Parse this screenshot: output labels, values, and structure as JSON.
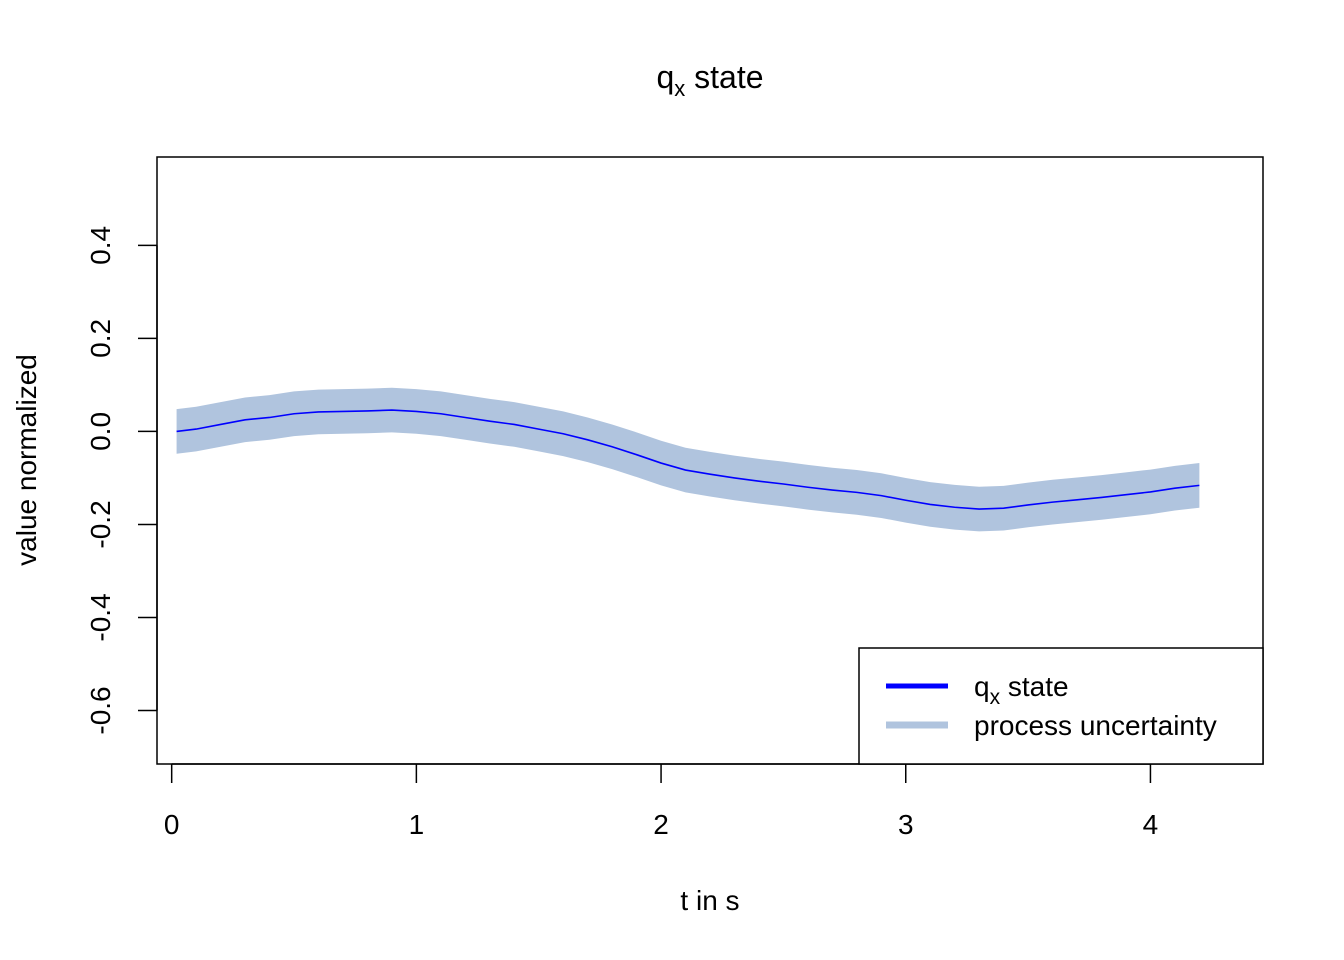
{
  "chart_data": {
    "type": "line",
    "title": {
      "main": "q",
      "sub": "x",
      "rest": " state"
    },
    "xlabel": "t in s",
    "ylabel": "value normalized",
    "xlim": [
      -0.06,
      4.46
    ],
    "ylim": [
      -0.715,
      0.59
    ],
    "x_ticks": [
      0,
      1,
      2,
      3,
      4
    ],
    "y_ticks": [
      -0.6,
      -0.4,
      -0.2,
      0.0,
      0.2,
      0.4
    ],
    "x_tick_labels": [
      "0",
      "1",
      "2",
      "3",
      "4"
    ],
    "y_tick_labels": [
      "-0.6",
      "-0.4",
      "-0.2",
      "0.0",
      "0.2",
      "0.4"
    ],
    "grid": false,
    "legend_position": "bottom-right",
    "colors": {
      "line": "#0000ff",
      "band": "#b0c4de"
    },
    "series": [
      {
        "name": {
          "main": "q",
          "sub": "x",
          "rest": " state"
        },
        "x": [
          0.02,
          0.1,
          0.2,
          0.3,
          0.4,
          0.5,
          0.6,
          0.7,
          0.8,
          0.9,
          1.0,
          1.1,
          1.2,
          1.3,
          1.4,
          1.5,
          1.6,
          1.7,
          1.8,
          1.9,
          2.0,
          2.1,
          2.2,
          2.3,
          2.4,
          2.5,
          2.6,
          2.7,
          2.8,
          2.9,
          3.0,
          3.1,
          3.2,
          3.3,
          3.4,
          3.5,
          3.6,
          3.7,
          3.8,
          3.9,
          4.0,
          4.1,
          4.2
        ],
        "y": [
          0.0,
          0.005,
          0.015,
          0.025,
          0.03,
          0.038,
          0.042,
          0.043,
          0.044,
          0.046,
          0.043,
          0.038,
          0.03,
          0.022,
          0.015,
          0.005,
          -0.005,
          -0.018,
          -0.033,
          -0.05,
          -0.068,
          -0.083,
          -0.092,
          -0.1,
          -0.107,
          -0.113,
          -0.12,
          -0.126,
          -0.131,
          -0.138,
          -0.148,
          -0.157,
          -0.163,
          -0.167,
          -0.165,
          -0.158,
          -0.152,
          -0.147,
          -0.142,
          -0.136,
          -0.13,
          -0.122,
          -0.116
        ]
      },
      {
        "name": "process uncertainty",
        "type": "band",
        "x": [
          0.02,
          0.1,
          0.2,
          0.3,
          0.4,
          0.5,
          0.6,
          0.7,
          0.8,
          0.9,
          1.0,
          1.1,
          1.2,
          1.3,
          1.4,
          1.5,
          1.6,
          1.7,
          1.8,
          1.9,
          2.0,
          2.1,
          2.2,
          2.3,
          2.4,
          2.5,
          2.6,
          2.7,
          2.8,
          2.9,
          3.0,
          3.1,
          3.2,
          3.3,
          3.4,
          3.5,
          3.6,
          3.7,
          3.8,
          3.9,
          4.0,
          4.1,
          4.2
        ],
        "upper": [
          0.048,
          0.053,
          0.063,
          0.073,
          0.078,
          0.086,
          0.09,
          0.091,
          0.092,
          0.094,
          0.091,
          0.086,
          0.078,
          0.07,
          0.063,
          0.053,
          0.043,
          0.03,
          0.015,
          -0.002,
          -0.02,
          -0.035,
          -0.044,
          -0.052,
          -0.059,
          -0.065,
          -0.072,
          -0.078,
          -0.083,
          -0.09,
          -0.1,
          -0.109,
          -0.115,
          -0.119,
          -0.117,
          -0.11,
          -0.104,
          -0.099,
          -0.094,
          -0.088,
          -0.082,
          -0.074,
          -0.068
        ],
        "lower": [
          -0.048,
          -0.043,
          -0.033,
          -0.023,
          -0.018,
          -0.01,
          -0.006,
          -0.005,
          -0.004,
          -0.002,
          -0.005,
          -0.01,
          -0.018,
          -0.026,
          -0.033,
          -0.043,
          -0.053,
          -0.066,
          -0.081,
          -0.098,
          -0.116,
          -0.131,
          -0.14,
          -0.148,
          -0.155,
          -0.161,
          -0.168,
          -0.174,
          -0.179,
          -0.186,
          -0.196,
          -0.205,
          -0.211,
          -0.215,
          -0.213,
          -0.206,
          -0.2,
          -0.195,
          -0.19,
          -0.184,
          -0.178,
          -0.17,
          -0.164
        ]
      }
    ]
  }
}
